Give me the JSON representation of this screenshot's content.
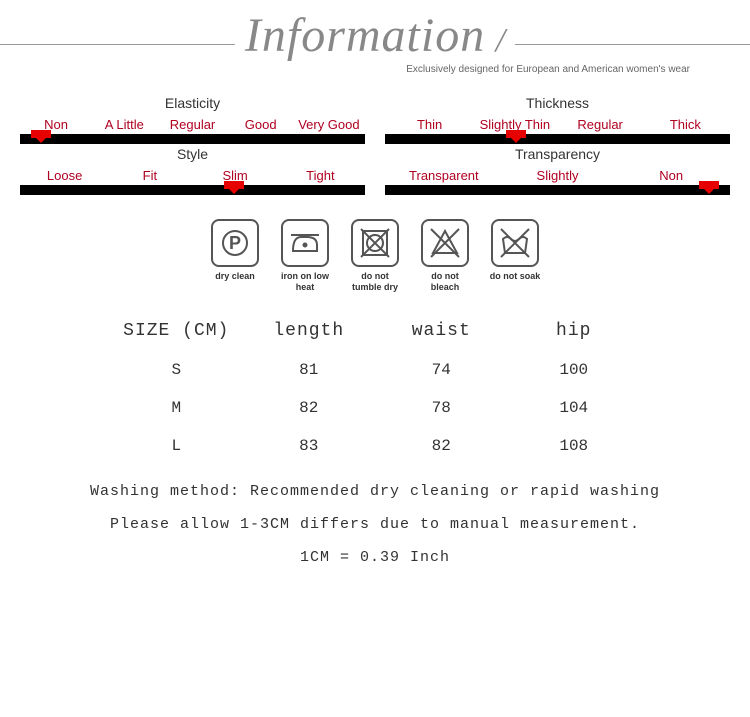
{
  "header": {
    "title": "Information",
    "slash": "/",
    "subtitle": "Exclusively designed for European and American women's wear"
  },
  "scales": {
    "left": [
      {
        "title": "Elasticity",
        "labels": [
          "Non",
          "A Little",
          "Regular",
          "Good",
          "Very Good"
        ],
        "marker_percent": 6,
        "marker_color": "#e60000",
        "bar_color": "#000000"
      },
      {
        "title": "Style",
        "labels": [
          "Loose",
          "Fit",
          "Slim",
          "Tight"
        ],
        "marker_percent": 62,
        "marker_color": "#e60000",
        "bar_color": "#000000"
      }
    ],
    "right": [
      {
        "title": "Thickness",
        "labels": [
          "Thin",
          "Slightly Thin",
          "Regular",
          "Thick"
        ],
        "marker_percent": 38,
        "marker_color": "#e60000",
        "bar_color": "#000000"
      },
      {
        "title": "Transparency",
        "labels": [
          "Transparent",
          "Slightly",
          "Non"
        ],
        "marker_percent": 94,
        "marker_color": "#e60000",
        "bar_color": "#000000"
      }
    ]
  },
  "care": [
    {
      "icon": "dry-clean",
      "label": "dry clean"
    },
    {
      "icon": "iron-low",
      "label": "iron on low heat"
    },
    {
      "icon": "no-tumble",
      "label": "do not tumble dry"
    },
    {
      "icon": "no-bleach",
      "label": "do not bleach"
    },
    {
      "icon": "no-soak",
      "label": "do not soak"
    }
  ],
  "size_table": {
    "columns": [
      "SIZE (CM)",
      "length",
      "waist",
      "hip"
    ],
    "rows": [
      [
        "S",
        "81",
        "74",
        "100"
      ],
      [
        "M",
        "82",
        "78",
        "104"
      ],
      [
        "L",
        "83",
        "82",
        "108"
      ]
    ]
  },
  "notes": {
    "line1": "Washing method: Recommended dry cleaning or rapid washing",
    "line2": "Please allow 1-3CM differs due to manual measurement.",
    "line3": "1CM = 0.39 Inch"
  },
  "colors": {
    "title": "#888888",
    "scale_label": "#b00020",
    "text": "#333333"
  }
}
